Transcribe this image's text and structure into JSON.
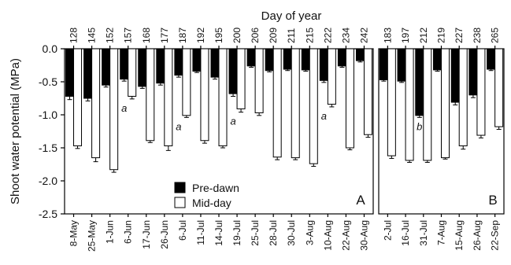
{
  "chart_data": {
    "type": "bar",
    "title": "Day of year",
    "ylabel": "Shoot water potential (MPa)",
    "ylim": [
      -2.5,
      0.0
    ],
    "yticks": [
      "0.0",
      "-0.5",
      "-1.0",
      "-1.5",
      "-2.0",
      "-2.5"
    ],
    "ytick_values": [
      0.0,
      -0.5,
      -1.0,
      -1.5,
      -2.0,
      -2.5
    ],
    "legend": {
      "placement": "bottom-center",
      "entries": [
        {
          "name": "Pre-dawn",
          "color": "#000000"
        },
        {
          "name": "Mid-day",
          "color": "#ffffff"
        }
      ]
    },
    "panels": [
      {
        "label": "A",
        "categories": [
          "8-May",
          "25-May",
          "1-Jun",
          "6-Jun",
          "17-Jun",
          "26-Jun",
          "6-Jul",
          "11-Jul",
          "14-Jul",
          "19-Jul",
          "25-Jul",
          "28-Jul",
          "30-Jul",
          "3-Aug",
          "10-Aug",
          "22-Aug",
          "30-Aug"
        ],
        "day_of_year": [
          "128",
          "145",
          "152",
          "157",
          "168",
          "177",
          "187",
          "192",
          "195",
          "200",
          "206",
          "209",
          "211",
          "215",
          "222",
          "234",
          "242"
        ],
        "series": [
          {
            "name": "Pre-dawn",
            "values": [
              -0.72,
              -0.75,
              -0.55,
              -0.46,
              -0.57,
              -0.52,
              -0.4,
              -0.34,
              -0.43,
              -0.68,
              -0.26,
              -0.33,
              -0.31,
              -0.32,
              -0.48,
              -0.26,
              -0.18
            ],
            "errors": [
              0.05,
              0.04,
              0.03,
              0.03,
              0.03,
              0.03,
              0.03,
              0.02,
              0.03,
              0.04,
              0.02,
              0.02,
              0.02,
              0.02,
              0.03,
              0.02,
              0.02
            ]
          },
          {
            "name": "Mid-day",
            "values": [
              -1.47,
              -1.65,
              -1.83,
              -0.72,
              -1.39,
              -1.47,
              -1.01,
              -1.39,
              -1.47,
              -0.91,
              -0.97,
              -1.64,
              -1.65,
              -1.74,
              -0.84,
              -1.5,
              -1.3
            ],
            "errors": [
              0.04,
              0.06,
              0.04,
              0.04,
              0.03,
              0.07,
              0.03,
              0.04,
              0.03,
              0.05,
              0.04,
              0.04,
              0.03,
              0.04,
              0.04,
              0.03,
              0.04
            ]
          }
        ],
        "annotations": [
          {
            "category": "6-Jun",
            "text": "a"
          },
          {
            "category": "6-Jul",
            "text": "a"
          },
          {
            "category": "19-Jul",
            "text": "a"
          },
          {
            "category": "10-Aug",
            "text": "a"
          }
        ]
      },
      {
        "label": "B",
        "categories": [
          "2-Jul",
          "16-Jul",
          "31-Jul",
          "7-Aug",
          "15-Aug",
          "26-Aug",
          "22-Sep"
        ],
        "day_of_year": [
          "183",
          "197",
          "212",
          "219",
          "227",
          "238",
          "265"
        ],
        "series": [
          {
            "name": "Pre-dawn",
            "values": [
              -0.47,
              -0.49,
              -1.01,
              -0.32,
              -0.81,
              -0.7,
              -0.31
            ],
            "errors": [
              0.02,
              0.02,
              0.03,
              0.02,
              0.04,
              0.04,
              0.02
            ]
          },
          {
            "name": "Mid-day",
            "values": [
              -1.62,
              -1.69,
              -1.69,
              -1.65,
              -1.47,
              -1.31,
              -1.18
            ],
            "errors": [
              0.04,
              0.03,
              0.03,
              0.02,
              0.05,
              0.04,
              0.04
            ]
          }
        ],
        "annotations": [
          {
            "category": "31-Jul",
            "text": "b"
          }
        ]
      }
    ]
  }
}
